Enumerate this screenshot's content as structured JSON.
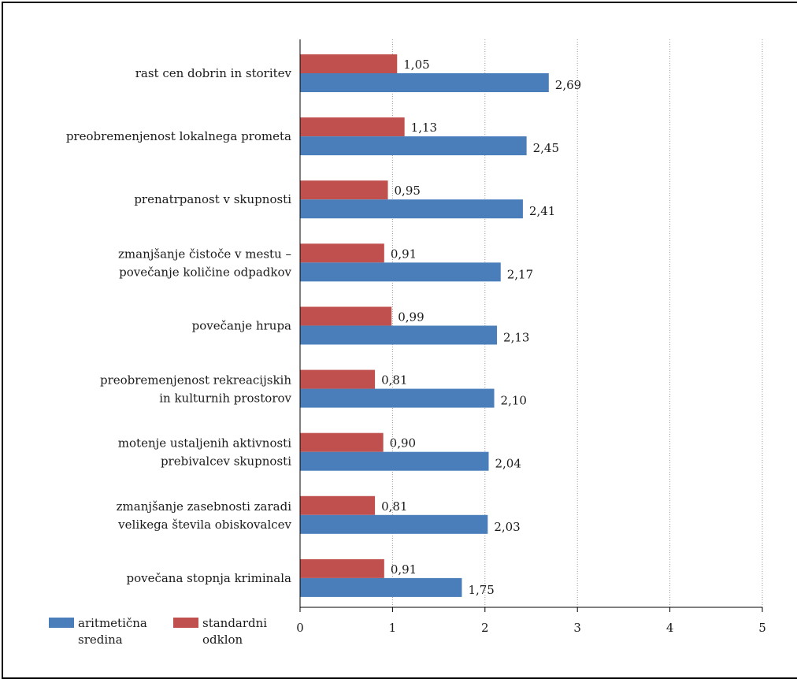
{
  "chart_data": {
    "type": "bar",
    "orientation": "horizontal",
    "categories": [
      [
        "rast cen dobrin in storitev"
      ],
      [
        "preobremenjenost lokalnega prometa"
      ],
      [
        "prenatrpanost v skupnosti"
      ],
      [
        "zmanjšanje čistoče v mestu –",
        "povečanje količine odpadkov"
      ],
      [
        "povečanje hrupa"
      ],
      [
        "preobremenjenost rekreacijskih",
        "in kulturnih prostorov"
      ],
      [
        "motenje ustaljenih aktivnosti",
        "prebivalcev skupnosti"
      ],
      [
        "zmanjšanje zasebnosti zaradi",
        "velikega števila obiskovalcev"
      ],
      [
        "povečana stopnja kriminala"
      ]
    ],
    "series": [
      {
        "name": "standardni odklon",
        "color": "#c0504d",
        "values": [
          1.05,
          1.13,
          0.95,
          0.91,
          0.99,
          0.81,
          0.9,
          0.81,
          0.91
        ],
        "labels": [
          "1,05",
          "1,13",
          "0,95",
          "0,91",
          "0,99",
          "0,81",
          "0,90",
          "0,81",
          "0,91"
        ]
      },
      {
        "name": "aritmetična sredina",
        "color": "#4a7ebb",
        "values": [
          2.69,
          2.45,
          2.41,
          2.17,
          2.13,
          2.1,
          2.04,
          2.03,
          1.75
        ],
        "labels": [
          "2,69",
          "2,45",
          "2,41",
          "2,17",
          "2,13",
          "2,10",
          "2,04",
          "2,03",
          "1,75"
        ]
      }
    ],
    "xlim": [
      0,
      5
    ],
    "xticks": [
      "0",
      "1",
      "2",
      "3",
      "4",
      "5"
    ],
    "grid": "vertical dotted",
    "legend": {
      "position": "bottom-left",
      "items": [
        {
          "lines": [
            "aritmetična",
            "sredina"
          ],
          "color": "#4a7ebb"
        },
        {
          "lines": [
            "standardni",
            "odklon"
          ],
          "color": "#c0504d"
        }
      ]
    }
  }
}
